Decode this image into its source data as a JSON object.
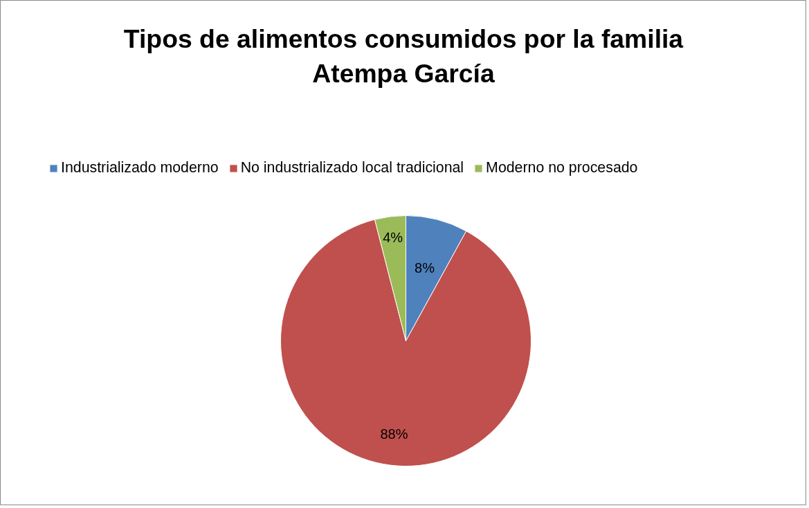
{
  "chart_data": {
    "type": "pie",
    "title": "Tipos de alimentos consumidos por la familia\nAtempa García",
    "categories": [
      "Industrializado moderno",
      "No industrializado local tradicional",
      "Moderno no procesado"
    ],
    "values": [
      8,
      88,
      4
    ],
    "colors": [
      "#4f81bd",
      "#c0504d",
      "#9bbb59"
    ],
    "value_labels": [
      "8%",
      "88%",
      "4%"
    ],
    "legend": "top"
  }
}
